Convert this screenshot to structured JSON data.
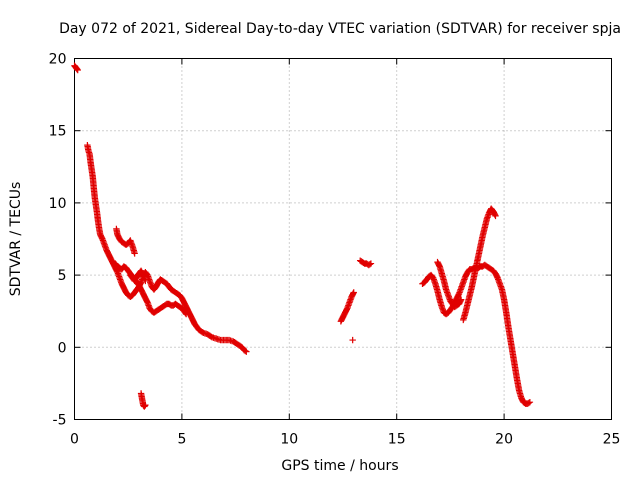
{
  "chart_data": {
    "type": "scatter",
    "title": "Day 072 of 2021, Sidereal Day-to-day VTEC variation (SDTVAR) for receiver spja",
    "xlabel": "GPS time / hours",
    "ylabel": "SDTVAR / TECUs",
    "xlim": [
      0,
      25
    ],
    "ylim": [
      -5,
      20
    ],
    "xticks": [
      "0",
      "5",
      "10",
      "15",
      "20",
      "25"
    ],
    "yticks": [
      "-5",
      "0",
      "5",
      "10",
      "15",
      "20"
    ],
    "grid": true,
    "marker": "+",
    "series": [
      {
        "name": "SDTVAR",
        "color": "#ee0000",
        "segments": [
          [
            [
              0.0,
              19.5
            ],
            [
              0.05,
              19.4
            ],
            [
              0.1,
              19.3
            ],
            [
              0.15,
              19.2
            ]
          ],
          [
            [
              0.6,
              14.0
            ],
            [
              0.65,
              13.6
            ],
            [
              0.7,
              13.4
            ],
            [
              0.75,
              12.8
            ],
            [
              0.8,
              12.3
            ],
            [
              0.85,
              11.8
            ],
            [
              0.9,
              11.0
            ],
            [
              0.95,
              10.3
            ],
            [
              1.0,
              9.8
            ],
            [
              1.05,
              9.3
            ],
            [
              1.1,
              8.7
            ],
            [
              1.15,
              8.2
            ],
            [
              1.2,
              7.8
            ],
            [
              1.3,
              7.5
            ],
            [
              1.4,
              7.1
            ],
            [
              1.5,
              6.7
            ],
            [
              1.6,
              6.4
            ],
            [
              1.7,
              6.1
            ],
            [
              1.8,
              5.8
            ],
            [
              1.9,
              5.5
            ],
            [
              2.0,
              5.2
            ],
            [
              2.1,
              4.8
            ],
            [
              2.2,
              4.4
            ],
            [
              2.3,
              4.1
            ],
            [
              2.4,
              3.8
            ],
            [
              2.5,
              3.6
            ],
            [
              2.6,
              3.5
            ],
            [
              2.7,
              3.6
            ],
            [
              2.8,
              3.8
            ],
            [
              2.9,
              4.0
            ],
            [
              3.0,
              4.2
            ],
            [
              3.1,
              4.5
            ],
            [
              3.2,
              4.9
            ],
            [
              3.3,
              5.2
            ],
            [
              3.4,
              5.0
            ],
            [
              3.5,
              4.6
            ],
            [
              3.6,
              4.2
            ],
            [
              3.7,
              4.0
            ],
            [
              3.8,
              4.2
            ],
            [
              3.9,
              4.5
            ],
            [
              4.0,
              4.7
            ],
            [
              4.1,
              4.6
            ],
            [
              4.2,
              4.5
            ],
            [
              4.3,
              4.4
            ],
            [
              4.4,
              4.2
            ],
            [
              4.5,
              4.0
            ],
            [
              4.6,
              3.9
            ],
            [
              4.7,
              3.8
            ],
            [
              4.8,
              3.7
            ],
            [
              4.9,
              3.6
            ],
            [
              5.0,
              3.4
            ],
            [
              5.1,
              3.1
            ],
            [
              5.2,
              2.8
            ],
            [
              5.3,
              2.5
            ],
            [
              5.4,
              2.2
            ],
            [
              5.5,
              1.9
            ],
            [
              5.6,
              1.6
            ],
            [
              5.7,
              1.4
            ],
            [
              5.8,
              1.2
            ],
            [
              5.9,
              1.1
            ],
            [
              6.0,
              1.0
            ],
            [
              6.2,
              0.9
            ],
            [
              6.4,
              0.7
            ],
            [
              6.6,
              0.6
            ],
            [
              6.8,
              0.5
            ],
            [
              7.0,
              0.5
            ],
            [
              7.2,
              0.5
            ],
            [
              7.4,
              0.4
            ],
            [
              7.6,
              0.2
            ],
            [
              7.8,
              0.0
            ],
            [
              7.9,
              -0.2
            ],
            [
              8.0,
              -0.3
            ]
          ],
          [
            [
              1.9,
              5.8
            ],
            [
              2.0,
              5.6
            ],
            [
              2.1,
              5.5
            ],
            [
              2.2,
              5.4
            ],
            [
              2.3,
              5.6
            ],
            [
              2.4,
              5.5
            ],
            [
              2.5,
              5.3
            ],
            [
              2.6,
              5.1
            ],
            [
              2.7,
              4.9
            ],
            [
              2.8,
              4.7
            ],
            [
              2.9,
              4.5
            ],
            [
              3.0,
              4.3
            ],
            [
              3.1,
              4.0
            ],
            [
              3.2,
              3.7
            ],
            [
              3.3,
              3.4
            ],
            [
              3.4,
              3.1
            ],
            [
              3.5,
              2.7
            ],
            [
              3.6,
              2.5
            ],
            [
              3.7,
              2.4
            ],
            [
              3.8,
              2.5
            ],
            [
              3.9,
              2.6
            ],
            [
              4.0,
              2.7
            ],
            [
              4.1,
              2.8
            ],
            [
              4.2,
              2.9
            ],
            [
              4.3,
              3.0
            ],
            [
              4.4,
              3.0
            ],
            [
              4.5,
              2.9
            ],
            [
              4.6,
              2.9
            ],
            [
              4.7,
              3.0
            ],
            [
              4.8,
              2.9
            ],
            [
              4.9,
              2.8
            ],
            [
              5.0,
              2.7
            ],
            [
              5.1,
              2.5
            ],
            [
              5.2,
              2.3
            ]
          ],
          [
            [
              1.95,
              8.2
            ],
            [
              2.0,
              7.8
            ],
            [
              2.1,
              7.5
            ],
            [
              2.2,
              7.3
            ],
            [
              2.3,
              7.2
            ],
            [
              2.4,
              7.1
            ],
            [
              2.5,
              7.2
            ],
            [
              2.6,
              7.4
            ],
            [
              2.7,
              7.0
            ],
            [
              2.8,
              6.5
            ]
          ],
          [
            [
              2.6,
              5.0
            ],
            [
              2.7,
              4.8
            ],
            [
              2.8,
              4.6
            ],
            [
              2.9,
              4.9
            ],
            [
              3.0,
              5.1
            ],
            [
              3.1,
              5.3
            ],
            [
              3.2,
              5.0
            ],
            [
              3.3,
              4.6
            ]
          ],
          [
            [
              3.1,
              -3.2
            ],
            [
              3.15,
              -3.6
            ],
            [
              3.2,
              -4.0
            ],
            [
              3.25,
              -4.1
            ],
            [
              3.3,
              -4.0
            ]
          ],
          [
            [
              12.4,
              1.8
            ],
            [
              12.5,
              2.1
            ],
            [
              12.6,
              2.4
            ],
            [
              12.7,
              2.7
            ],
            [
              12.8,
              3.1
            ],
            [
              12.9,
              3.5
            ],
            [
              13.0,
              3.8
            ]
          ],
          [
            [
              12.95,
              0.5
            ]
          ],
          [
            [
              13.3,
              6.0
            ],
            [
              13.4,
              5.9
            ],
            [
              13.5,
              5.8
            ],
            [
              13.6,
              5.8
            ],
            [
              13.7,
              5.7
            ],
            [
              13.8,
              5.8
            ]
          ],
          [
            [
              16.2,
              4.4
            ],
            [
              16.3,
              4.5
            ],
            [
              16.4,
              4.7
            ],
            [
              16.5,
              4.9
            ],
            [
              16.6,
              5.0
            ],
            [
              16.7,
              4.8
            ],
            [
              16.8,
              4.4
            ],
            [
              16.9,
              3.9
            ],
            [
              17.0,
              3.3
            ],
            [
              17.1,
              2.8
            ],
            [
              17.2,
              2.4
            ],
            [
              17.3,
              2.3
            ],
            [
              17.4,
              2.4
            ],
            [
              17.5,
              2.6
            ],
            [
              17.6,
              2.8
            ],
            [
              17.7,
              3.1
            ],
            [
              17.8,
              3.4
            ],
            [
              17.9,
              3.7
            ],
            [
              18.0,
              4.1
            ],
            [
              18.1,
              4.5
            ],
            [
              18.2,
              4.9
            ],
            [
              18.3,
              5.2
            ],
            [
              18.4,
              5.4
            ],
            [
              18.5,
              5.4
            ],
            [
              18.6,
              5.5
            ],
            [
              18.7,
              5.5
            ],
            [
              18.8,
              5.5
            ],
            [
              18.9,
              5.6
            ],
            [
              19.0,
              5.6
            ],
            [
              19.1,
              5.7
            ],
            [
              19.2,
              5.6
            ],
            [
              19.3,
              5.5
            ],
            [
              19.4,
              5.4
            ],
            [
              19.5,
              5.3
            ],
            [
              19.6,
              5.1
            ],
            [
              19.7,
              4.8
            ],
            [
              19.8,
              4.4
            ],
            [
              19.9,
              4.0
            ],
            [
              20.0,
              3.3
            ],
            [
              20.1,
              2.4
            ],
            [
              20.2,
              1.4
            ],
            [
              20.3,
              0.5
            ],
            [
              20.4,
              -0.4
            ],
            [
              20.5,
              -1.3
            ],
            [
              20.6,
              -2.2
            ],
            [
              20.7,
              -3.0
            ],
            [
              20.8,
              -3.5
            ],
            [
              20.9,
              -3.8
            ],
            [
              21.0,
              -3.9
            ],
            [
              21.1,
              -3.9
            ],
            [
              21.2,
              -3.8
            ]
          ],
          [
            [
              16.9,
              5.9
            ],
            [
              17.0,
              5.6
            ],
            [
              17.1,
              5.1
            ],
            [
              17.2,
              4.6
            ],
            [
              17.3,
              4.0
            ],
            [
              17.4,
              3.6
            ],
            [
              17.5,
              3.2
            ],
            [
              17.6,
              3.0
            ],
            [
              17.7,
              2.8
            ],
            [
              17.8,
              2.9
            ],
            [
              17.9,
              3.0
            ],
            [
              18.0,
              3.3
            ]
          ],
          [
            [
              18.1,
              1.9
            ],
            [
              18.2,
              2.4
            ],
            [
              18.3,
              3.0
            ],
            [
              18.4,
              3.6
            ],
            [
              18.5,
              4.2
            ],
            [
              18.6,
              4.9
            ],
            [
              18.7,
              5.6
            ],
            [
              18.8,
              6.3
            ],
            [
              18.9,
              7.0
            ],
            [
              19.0,
              7.7
            ],
            [
              19.1,
              8.3
            ],
            [
              19.2,
              8.9
            ],
            [
              19.3,
              9.3
            ],
            [
              19.4,
              9.6
            ],
            [
              19.5,
              9.4
            ],
            [
              19.6,
              9.1
            ]
          ]
        ]
      }
    ]
  }
}
